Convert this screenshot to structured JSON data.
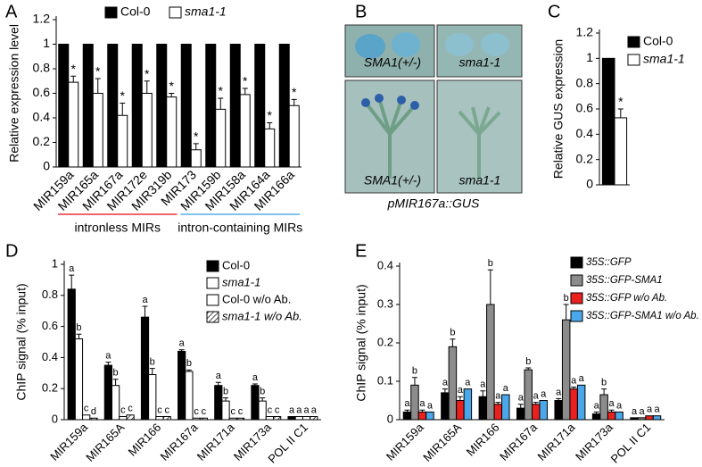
{
  "chart_data": [
    {
      "type": "bar",
      "letter": "A",
      "ylabel": "Relative expression level",
      "categories": [
        "MIR159a",
        "MIR165a",
        "MIR167a",
        "MIR172e",
        "MIR319b",
        "MIR173",
        "MIR159b",
        "MIR158a",
        "MIR164a",
        "MIR166a"
      ],
      "ylim": [
        0,
        1.2
      ],
      "yticks": [
        0,
        0.2,
        0.4,
        0.6,
        0.8,
        1,
        1.2
      ],
      "series": [
        {
          "name": "Col-0",
          "color": "#000000",
          "values": [
            1,
            1,
            1,
            1,
            1,
            1,
            1,
            1,
            1,
            1
          ]
        },
        {
          "name": "sma1-1",
          "color": "#ffffff",
          "italic": true,
          "values": [
            0.69,
            0.6,
            0.42,
            0.6,
            0.57,
            0.14,
            0.47,
            0.59,
            0.31,
            0.5
          ],
          "errors": [
            0.05,
            0.12,
            0.1,
            0.1,
            0.03,
            0.05,
            0.09,
            0.05,
            0.05,
            0.05
          ],
          "labels": [
            "*",
            "*",
            "*",
            "*",
            "*",
            "*",
            "*",
            "*",
            "*",
            "*"
          ]
        }
      ],
      "groups": [
        {
          "label": "intronless MIRs",
          "color": "#e8343a"
        },
        {
          "label": "intron-containing MIRs",
          "color": "#5aaee6"
        }
      ]
    },
    {
      "type": "bar",
      "letter": "C",
      "ylabel": "Relative GUS expression",
      "categories": [
        null
      ],
      "ylim": [
        0,
        1.2
      ],
      "yticks": [
        0,
        0.2,
        0.4,
        0.6,
        0.8,
        1,
        1.2
      ],
      "series": [
        {
          "name": "Col-0",
          "color": "#000000",
          "values": [
            1
          ]
        },
        {
          "name": "sma1-1",
          "color": "#ffffff",
          "italic": true,
          "values": [
            0.53
          ],
          "errors": [
            0.07
          ],
          "labels": [
            "*"
          ]
        }
      ]
    },
    {
      "type": "bar",
      "letter": "D",
      "ylabel": "ChIP signal (% input)",
      "categories": [
        "MIR159a",
        "MIR165A",
        "MIR166",
        "MIR167a",
        "MIR171a",
        "MIR173a",
        "POL II C1"
      ],
      "ylim": [
        0,
        1
      ],
      "yticks": [
        0,
        0.2,
        0.4,
        0.6,
        0.8,
        1
      ],
      "series": [
        {
          "name": "Col-0",
          "color": "#000000",
          "values": [
            0.84,
            0.35,
            0.66,
            0.44,
            0.22,
            0.22,
            0.02
          ],
          "errors": [
            0.09,
            0.02,
            0.07,
            0.01,
            0.02,
            0.01,
            null
          ],
          "labels": [
            "a",
            "a",
            "a",
            "a",
            "a",
            "a",
            "a"
          ]
        },
        {
          "name": "sma1-1",
          "color": "#ffffff",
          "italic": true,
          "values": [
            0.52,
            0.22,
            0.29,
            0.31,
            0.12,
            0.12,
            0.02
          ],
          "errors": [
            0.03,
            0.04,
            0.04,
            0.01,
            0.02,
            0.02,
            null
          ],
          "labels": [
            "b",
            "b",
            "b",
            "b",
            "b",
            "b",
            "a"
          ]
        },
        {
          "name": "Col-0 w/o Ab.",
          "color": "#ffffff",
          "values": [
            0.03,
            0.02,
            0.02,
            0.01,
            0.01,
            0.02,
            0.02
          ],
          "errors": [
            null,
            null,
            null,
            null,
            null,
            null,
            null
          ],
          "labels": [
            "c",
            "c",
            "c",
            "c",
            "c",
            "c",
            "a"
          ]
        },
        {
          "name": "sma1-1 w/o Ab.",
          "color": "#ffffff",
          "pattern": "hatch",
          "italic": true,
          "values": [
            0.01,
            0.03,
            0.02,
            0.01,
            0.01,
            0.02,
            0.02
          ],
          "errors": [
            null,
            null,
            null,
            null,
            null,
            null,
            null
          ],
          "labels": [
            "d",
            "c",
            "c",
            "c",
            "c",
            "c",
            "a"
          ]
        }
      ]
    },
    {
      "type": "bar",
      "letter": "E",
      "ylabel": "ChIP signal (% input)",
      "categories": [
        "MIR159a",
        "MIR165A",
        "MIR166",
        "MIR167a",
        "MIR171a",
        "MIR173a",
        "POL II C1"
      ],
      "ylim": [
        0,
        0.4
      ],
      "yticks": [
        0,
        0.1,
        0.2,
        0.3,
        0.4
      ],
      "series": [
        {
          "name": "35S::GFP",
          "color": "#000000",
          "italic": true,
          "values": [
            0.02,
            0.07,
            0.06,
            0.03,
            0.05,
            0.015,
            0.005
          ],
          "errors": [
            0.005,
            0.01,
            0.015,
            0.01,
            0.005,
            0.005,
            null
          ],
          "labels": [
            "a",
            "a",
            "a",
            "a",
            "a",
            "a",
            "a"
          ]
        },
        {
          "name": "35S::GFP-SMA1",
          "color": "#8c8c8c",
          "italic": true,
          "values": [
            0.09,
            0.19,
            0.3,
            0.13,
            0.26,
            0.065,
            0.005
          ],
          "errors": [
            0.02,
            0.02,
            0.09,
            0.005,
            0.04,
            0.015,
            null
          ],
          "labels": [
            "b",
            "b",
            "b",
            "b",
            "b",
            "b",
            "a"
          ]
        },
        {
          "name": "35S::GFP w/o Ab.",
          "color": "#e8201e",
          "italic": true,
          "values": [
            0.02,
            0.05,
            0.04,
            0.04,
            0.08,
            0.02,
            0.01
          ],
          "errors": [
            0.005,
            0.01,
            0.005,
            0.005,
            0.005,
            0.005,
            null
          ],
          "labels": [
            "a",
            "a",
            "a",
            "a",
            "a",
            "a",
            "a"
          ]
        },
        {
          "name": "35S::GFP-SMA1 w/o Ab.",
          "color": "#4aa8ea",
          "italic": true,
          "values": [
            0.02,
            0.08,
            0.065,
            0.05,
            0.09,
            0.02,
            0.01
          ],
          "errors": [
            null,
            null,
            null,
            null,
            null,
            null,
            null
          ],
          "labels": [
            "a",
            "a",
            "a",
            "a",
            "a",
            "a",
            "a"
          ]
        }
      ]
    }
  ],
  "panel_b": {
    "letter": "B",
    "images": [
      "SMA1(+/-)",
      "sma1-1",
      "SMA1(+/-)",
      "sma1-1"
    ],
    "caption": "pMIR167a::GUS"
  }
}
